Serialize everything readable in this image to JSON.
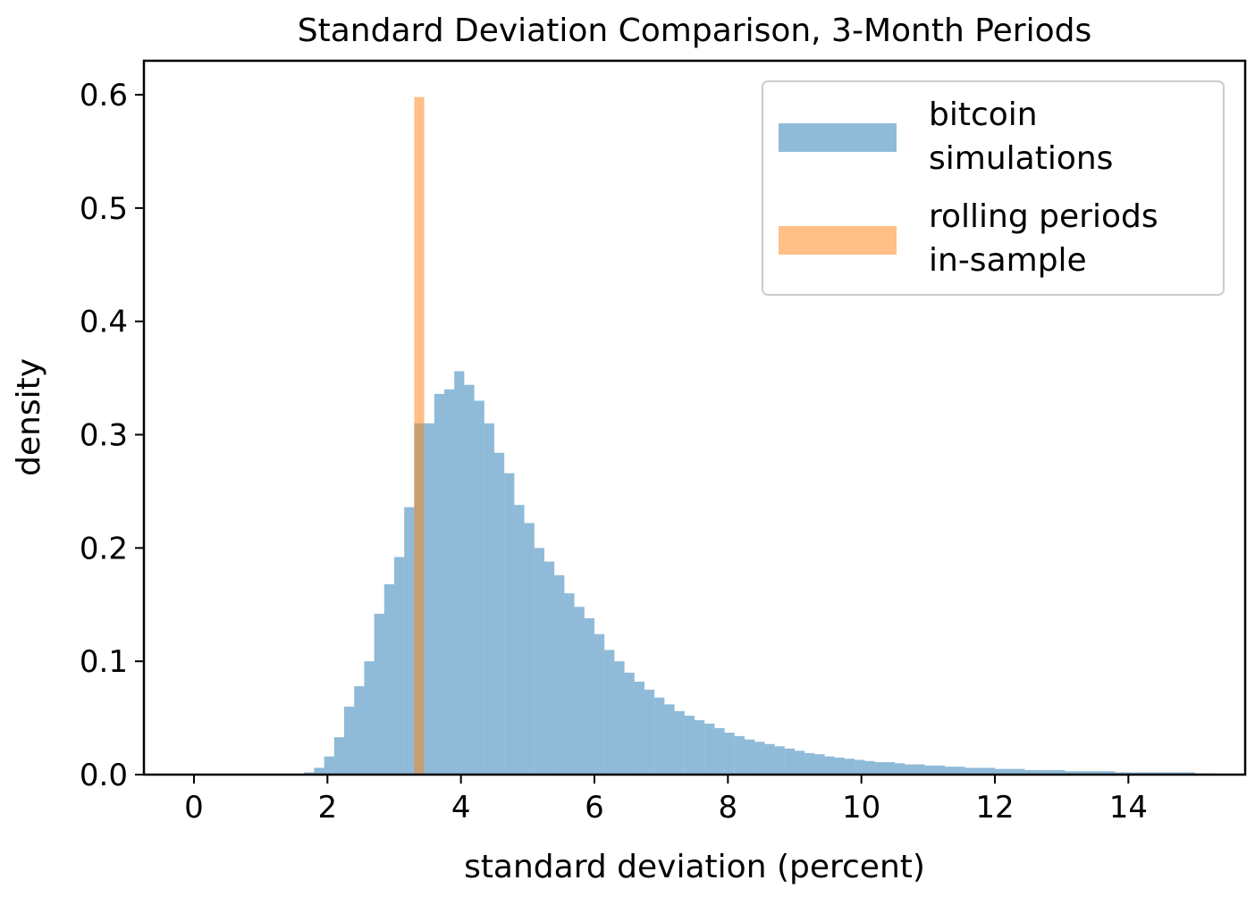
{
  "chart_data": {
    "type": "bar",
    "title": "Standard Deviation Comparison, 3-Month Periods",
    "xlabel": "standard deviation (percent)",
    "ylabel": "density",
    "xlim": [
      -0.75,
      15.75
    ],
    "ylim": [
      0.0,
      0.63
    ],
    "xticks": [
      0,
      2,
      4,
      6,
      8,
      10,
      12,
      14
    ],
    "yticks": [
      0.0,
      0.1,
      0.2,
      0.3,
      0.4,
      0.5,
      0.6
    ],
    "xtick_labels": [
      "0",
      "2",
      "4",
      "6",
      "8",
      "10",
      "12",
      "14"
    ],
    "ytick_labels": [
      "0.0",
      "0.1",
      "0.2",
      "0.3",
      "0.4",
      "0.5",
      "0.6"
    ],
    "grid": false,
    "legend_placement": "top-right",
    "legend": [
      {
        "lines": [
          "bitcoin",
          "simulations"
        ],
        "color": "#1f77b4"
      },
      {
        "lines": [
          "rolling periods",
          "in-sample"
        ],
        "color": "#ff7f0e"
      }
    ],
    "series": [
      {
        "name": "bitcoin simulations",
        "color": "#1f77b4",
        "opacity": 0.5,
        "bin_start": 1.65,
        "bin_width": 0.15,
        "values": [
          0.002,
          0.006,
          0.016,
          0.033,
          0.06,
          0.078,
          0.1,
          0.142,
          0.168,
          0.192,
          0.236,
          0.31,
          0.31,
          0.336,
          0.34,
          0.356,
          0.344,
          0.33,
          0.31,
          0.284,
          0.266,
          0.238,
          0.222,
          0.2,
          0.188,
          0.176,
          0.16,
          0.148,
          0.138,
          0.124,
          0.11,
          0.1,
          0.09,
          0.082,
          0.075,
          0.068,
          0.062,
          0.056,
          0.052,
          0.048,
          0.045,
          0.041,
          0.037,
          0.034,
          0.031,
          0.029,
          0.027,
          0.025,
          0.023,
          0.021,
          0.019,
          0.018,
          0.016,
          0.015,
          0.014,
          0.013,
          0.012,
          0.011,
          0.011,
          0.01,
          0.009,
          0.009,
          0.008,
          0.008,
          0.007,
          0.007,
          0.006,
          0.006,
          0.006,
          0.005,
          0.005,
          0.005,
          0.004,
          0.004,
          0.004,
          0.004,
          0.003,
          0.003,
          0.003,
          0.003,
          0.003,
          0.002,
          0.002,
          0.002,
          0.002,
          0.002,
          0.002,
          0.002,
          0.002,
          0.001,
          0.001
        ]
      },
      {
        "name": "rolling periods in-sample",
        "color": "#ff7f0e",
        "opacity": 0.5,
        "bin_start": 2.55,
        "bin_width": 0.15,
        "values": [
          0.0,
          0.0,
          0.0,
          0.0,
          0.0,
          0.598,
          0.0,
          0.0,
          0.0,
          0.0,
          0.0,
          0.0,
          0.0,
          0.0,
          0.0,
          0.0,
          0.0,
          0.0,
          0.0,
          0.0,
          0.0,
          0.0,
          0.0,
          0.0,
          0.0,
          0.0,
          0.0,
          0.0,
          0.0,
          0.0,
          0.0,
          0.0,
          0.0,
          0.0,
          0.0,
          0.0,
          0.0
        ]
      }
    ]
  }
}
